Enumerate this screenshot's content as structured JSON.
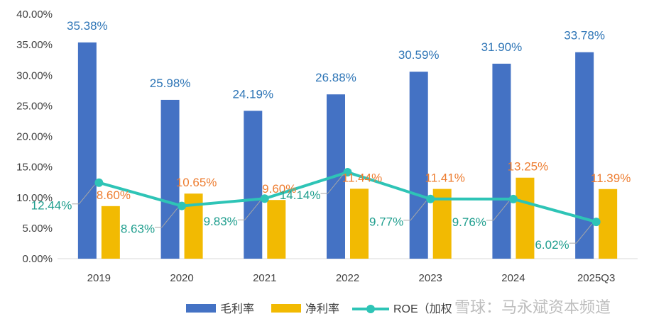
{
  "chart_data": {
    "type": "bar+line",
    "categories": [
      "2019",
      "2020",
      "2021",
      "2022",
      "2023",
      "2024",
      "2025Q3"
    ],
    "series": [
      {
        "name": "毛利率",
        "kind": "bar",
        "color": "#4472C4",
        "label_color": "#2E75B6",
        "values": [
          35.38,
          25.98,
          24.19,
          26.88,
          30.59,
          31.9,
          33.78
        ],
        "labels": [
          "35.38%",
          "25.98%",
          "24.19%",
          "26.88%",
          "30.59%",
          "31.90%",
          "33.78%"
        ]
      },
      {
        "name": "净利率",
        "kind": "bar",
        "color": "#F2BA02",
        "label_color": "#ED7D31",
        "values": [
          8.6,
          10.65,
          9.6,
          11.44,
          11.41,
          13.25,
          11.39
        ],
        "labels": [
          "8.60%",
          "10.65%",
          "9.60%",
          "11.44%",
          "11.41%",
          "13.25%",
          "11.39%"
        ]
      },
      {
        "name": "ROE（加权）",
        "legend_label": "ROE（加权",
        "kind": "line",
        "color": "#2EC4B6",
        "label_color": "#1F9E8E",
        "values": [
          12.44,
          8.63,
          9.83,
          14.14,
          9.77,
          9.76,
          6.02
        ],
        "labels": [
          "12.44%",
          "8.63%",
          "9.83%",
          "14.14%",
          "9.77%",
          "9.76%",
          "6.02%"
        ]
      }
    ],
    "y_ticks": [
      "0.00%",
      "5.00%",
      "10.00%",
      "15.00%",
      "20.00%",
      "25.00%",
      "30.00%",
      "35.00%",
      "40.00%"
    ],
    "ylim": [
      0,
      40
    ],
    "title": "",
    "xlabel": "",
    "ylabel": "",
    "legend_position": "bottom",
    "grid": false
  },
  "watermark": "雪球：马永斌资本频道"
}
